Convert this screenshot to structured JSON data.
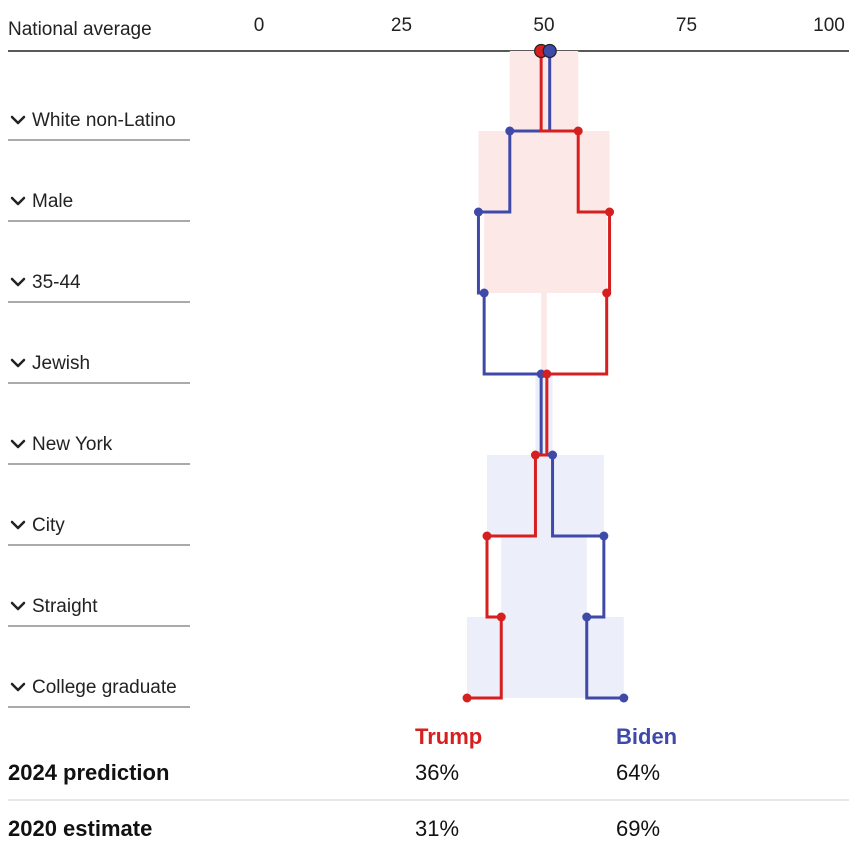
{
  "chart_data": {
    "type": "step-line",
    "header": "National average",
    "x_ticks": [
      0,
      25,
      50,
      75,
      100
    ],
    "xlim": [
      0,
      100
    ],
    "national_average": {
      "trump": 49.5,
      "biden": 51
    },
    "rows": [
      {
        "label": "White non-Latino",
        "trump": 56,
        "biden": 44
      },
      {
        "label": "Male",
        "trump": 61.5,
        "biden": 38.5
      },
      {
        "label": "35-44",
        "trump": 61,
        "biden": 39.5
      },
      {
        "label": "Jewish",
        "trump": 50.5,
        "biden": 49.5
      },
      {
        "label": "New York",
        "trump": 48.5,
        "biden": 51.5
      },
      {
        "label": "City",
        "trump": 40,
        "biden": 60.5
      },
      {
        "label": "Straight",
        "trump": 42.5,
        "biden": 57.5
      },
      {
        "label": "College graduate",
        "trump": 36.5,
        "biden": 64
      }
    ],
    "series": [
      {
        "name": "Trump",
        "color": "#d61f1f",
        "fill": "#fde8e8"
      },
      {
        "name": "Biden",
        "color": "#3f4aa8",
        "fill": "#eceefa"
      }
    ]
  },
  "summary": {
    "trump_label": "Trump",
    "biden_label": "Biden",
    "rows": [
      {
        "label": "2024 prediction",
        "trump": "36%",
        "biden": "64%"
      },
      {
        "label": "2020 estimate",
        "trump": "31%",
        "biden": "69%"
      }
    ]
  }
}
